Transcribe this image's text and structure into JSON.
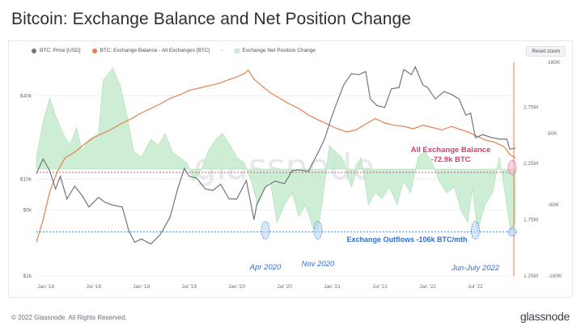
{
  "title": "Bitcoin: Exchange Balance and Net Position Change",
  "legend": {
    "price": "BTC: Price [USD]",
    "balance": "BTC: Exchange Balance - All Exchanges [BTC]",
    "separator": "-",
    "netpos": "Exchange Net Position Change"
  },
  "reset_zoom": "Reset zoom",
  "watermark": "glassnode",
  "footer": {
    "copyright": "© 2022 Glassnode. All Rights Reserved.",
    "logo": "glassnode"
  },
  "colors": {
    "price": "#6f7682",
    "balance": "#e57f4c",
    "netpos": "#a7e0b3",
    "netpos_fill": "#c8eccf",
    "annotation_red": "#d83d6f",
    "annotation_blue": "#2f6fd3",
    "grid": "#eef0f3"
  },
  "chart_data": {
    "type": "line",
    "title": "Bitcoin: Exchange Balance and Net Position Change",
    "x_tick_labels": [
      "Jan '18",
      "Jul '18",
      "Jan '19",
      "Jul '19",
      "Jan '20",
      "Jul '20",
      "Jan '21",
      "Jul '21",
      "Jan '22",
      "Jul '22"
    ],
    "x_range": [
      2017.9,
      2022.92
    ],
    "y_axis_price": {
      "scale": "log",
      "range": [
        2000,
        70000
      ],
      "tick_labels": [
        "$2k",
        "$6k",
        "$10k",
        "$40k"
      ],
      "tick_values": [
        2000,
        6000,
        10000,
        40000
      ]
    },
    "y_axis_balance": {
      "scale": "linear",
      "range": [
        1250000,
        3150000
      ],
      "tick_labels": [
        "1.25M",
        "1.75M",
        "2.25M",
        "2.75M"
      ],
      "tick_values": [
        1250000,
        1750000,
        2250000,
        2750000
      ]
    },
    "y_axis_netpos": {
      "scale": "linear",
      "range": [
        -180000,
        180000
      ],
      "tick_labels": [
        "-180K",
        "-60K",
        "60K",
        "180K"
      ],
      "tick_values": [
        -180000,
        -60000,
        60000,
        180000
      ]
    },
    "series": [
      {
        "name": "BTC: Price [USD]",
        "axis": "price",
        "x": [
          2017.9,
          2017.97,
          2018.04,
          2018.1,
          2018.15,
          2018.22,
          2018.3,
          2018.38,
          2018.45,
          2018.55,
          2018.62,
          2018.7,
          2018.8,
          2018.87,
          2018.93,
          2019.0,
          2019.1,
          2019.2,
          2019.3,
          2019.38,
          2019.45,
          2019.5,
          2019.58,
          2019.67,
          2019.75,
          2019.83,
          2019.92,
          2020.0,
          2020.1,
          2020.18,
          2020.21,
          2020.3,
          2020.4,
          2020.5,
          2020.58,
          2020.65,
          2020.75,
          2020.85,
          2020.92,
          2021.0,
          2021.05,
          2021.12,
          2021.2,
          2021.28,
          2021.35,
          2021.4,
          2021.47,
          2021.55,
          2021.62,
          2021.7,
          2021.75,
          2021.83,
          2021.87,
          2021.95,
          2022.0,
          2022.08,
          2022.17,
          2022.25,
          2022.33,
          2022.4,
          2022.45,
          2022.5,
          2022.58,
          2022.67,
          2022.75,
          2022.83,
          2022.86,
          2022.92
        ],
        "values": [
          11000,
          14000,
          11500,
          8500,
          10500,
          7200,
          8900,
          7600,
          6300,
          7400,
          6800,
          6500,
          6300,
          4200,
          3500,
          3700,
          3400,
          4000,
          5300,
          8500,
          12000,
          10500,
          10200,
          8500,
          8300,
          9200,
          7200,
          7200,
          9800,
          5100,
          6600,
          8800,
          9700,
          9300,
          11500,
          11700,
          11400,
          15500,
          19500,
          29000,
          36000,
          48000,
          58000,
          57000,
          60000,
          38000,
          34000,
          33000,
          45000,
          46000,
          62000,
          57000,
          65000,
          48000,
          46000,
          38000,
          43000,
          41000,
          38000,
          29000,
          30000,
          20000,
          21000,
          20000,
          19500,
          19500,
          16500,
          16800
        ]
      },
      {
        "name": "BTC: Exchange Balance - All Exchanges [BTC]",
        "axis": "balance",
        "x": [
          2017.9,
          2017.97,
          2018.04,
          2018.12,
          2018.2,
          2018.3,
          2018.4,
          2018.5,
          2018.6,
          2018.7,
          2018.8,
          2018.9,
          2019.0,
          2019.1,
          2019.2,
          2019.3,
          2019.4,
          2019.5,
          2019.6,
          2019.7,
          2019.8,
          2019.9,
          2020.0,
          2020.08,
          2020.12,
          2020.18,
          2020.25,
          2020.35,
          2020.45,
          2020.55,
          2020.65,
          2020.75,
          2020.85,
          2020.95,
          2021.05,
          2021.15,
          2021.25,
          2021.35,
          2021.45,
          2021.55,
          2021.65,
          2021.75,
          2021.85,
          2021.95,
          2022.05,
          2022.15,
          2022.25,
          2022.35,
          2022.42,
          2022.5,
          2022.6,
          2022.7,
          2022.8,
          2022.86,
          2022.92
        ],
        "values": [
          1550000,
          1750000,
          2000000,
          2180000,
          2300000,
          2350000,
          2420000,
          2480000,
          2520000,
          2560000,
          2610000,
          2650000,
          2700000,
          2740000,
          2780000,
          2830000,
          2860000,
          2900000,
          2920000,
          2940000,
          2960000,
          2990000,
          3020000,
          3050000,
          3080000,
          3000000,
          2950000,
          2880000,
          2830000,
          2780000,
          2740000,
          2680000,
          2640000,
          2600000,
          2560000,
          2530000,
          2550000,
          2600000,
          2650000,
          2610000,
          2590000,
          2580000,
          2560000,
          2590000,
          2570000,
          2550000,
          2580000,
          2550000,
          2530000,
          2500000,
          2460000,
          2440000,
          2400000,
          2330000,
          2300000
        ]
      },
      {
        "name": "Exchange Net Position Change",
        "axis": "netpos",
        "type": "area",
        "x": [
          2017.9,
          2017.97,
          2018.04,
          2018.1,
          2018.18,
          2018.25,
          2018.32,
          2018.38,
          2018.45,
          2018.55,
          2018.6,
          2018.7,
          2018.78,
          2018.85,
          2018.92,
          2019.0,
          2019.1,
          2019.18,
          2019.25,
          2019.32,
          2019.4,
          2019.48,
          2019.55,
          2019.63,
          2019.7,
          2019.78,
          2019.85,
          2019.93,
          2020.0,
          2020.08,
          2020.15,
          2020.22,
          2020.3,
          2020.35,
          2020.42,
          2020.5,
          2020.58,
          2020.65,
          2020.72,
          2020.8,
          2020.85,
          2020.9,
          2020.97,
          2021.03,
          2021.1,
          2021.2,
          2021.3,
          2021.38,
          2021.45,
          2021.52,
          2021.6,
          2021.68,
          2021.75,
          2021.82,
          2021.9,
          2021.97,
          2022.05,
          2022.12,
          2022.2,
          2022.28,
          2022.35,
          2022.42,
          2022.47,
          2022.52,
          2022.6,
          2022.68,
          2022.75,
          2022.82,
          2022.87,
          2022.92
        ],
        "values": [
          20000,
          80000,
          120000,
          90000,
          60000,
          40000,
          70000,
          30000,
          50000,
          60000,
          150000,
          170000,
          140000,
          90000,
          30000,
          20000,
          50000,
          40000,
          60000,
          30000,
          20000,
          10000,
          -20000,
          0,
          30000,
          50000,
          60000,
          40000,
          20000,
          10000,
          -20000,
          -60000,
          -30000,
          -20000,
          -90000,
          -60000,
          -40000,
          -80000,
          -60000,
          -100000,
          -106000,
          -50000,
          40000,
          30000,
          20000,
          -30000,
          20000,
          -60000,
          -40000,
          -50000,
          -30000,
          -60000,
          -20000,
          -40000,
          20000,
          30000,
          10000,
          -20000,
          -40000,
          -30000,
          -70000,
          -90000,
          -30000,
          -106000,
          -60000,
          -40000,
          20000,
          -50000,
          -106000,
          -90000
        ]
      }
    ],
    "annotations": [
      {
        "text": "All Exchange Balance",
        "color": "red"
      },
      {
        "text": "-72.9k BTC",
        "color": "red"
      },
      {
        "text": "Exchange Outflows -106k BTC/mth",
        "color": "blue"
      },
      {
        "text": "Apr 2020",
        "color": "blue"
      },
      {
        "text": "Nov 2020",
        "color": "blue"
      },
      {
        "text": "Jun-July 2022",
        "color": "blue"
      }
    ]
  }
}
